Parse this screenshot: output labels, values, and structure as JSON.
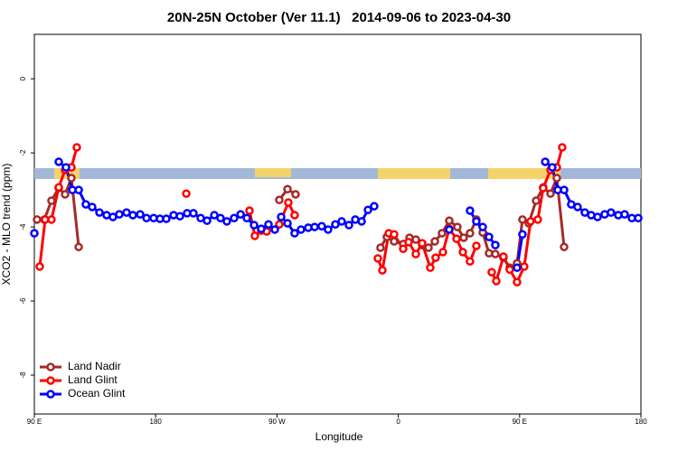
{
  "chart_data": {
    "type": "line",
    "title": "20N-25N October (Ver 11.1)   2014-09-06 to 2023-04-30",
    "x_label": "Longitude",
    "y_label": "XCO2 - MLO trend (ppm)",
    "xlim": [
      90,
      540
    ],
    "ylim": [
      -9.05,
      1.2
    ],
    "xticks": [
      {
        "value": 90,
        "label": "90 E"
      },
      180,
      {
        "value": 270,
        "label": "90 W"
      },
      {
        "value": 360,
        "label": "0"
      },
      {
        "value": 450,
        "label": "90 E"
      },
      {
        "value": 540,
        "label": "180"
      }
    ],
    "yticks": [
      0,
      -2,
      -4,
      -6,
      -8
    ],
    "legend": "bottom-left",
    "series": [
      {
        "name": "Land Nadir",
        "color": "#a52a2a",
        "x": [
          92,
          97.4,
          102.7,
          108.1,
          112.8,
          117.5,
          122.9,
          null,
          271.7,
          277.8,
          283.8,
          null,
          346.8,
          351.5,
          356.9,
          363.6,
          368.3,
          373.0,
          377.7,
          382.4,
          387.1,
          392.4,
          397.8,
          403.8,
          408.5,
          413.2,
          417.9,
          422.6,
          427.3,
          432.0,
          438.0,
          442.7,
          448.1,
          452.1,
          456.8,
          462.2,
          467.5,
          472.9,
          477.6,
          483.0
        ],
        "values": [
          -3.8,
          -3.8,
          -3.29,
          -2.95,
          -3.12,
          -2.68,
          -4.54,
          null,
          -3.27,
          -2.98,
          -3.12,
          null,
          -4.56,
          -4.27,
          -4.39,
          -4.46,
          -4.29,
          -4.34,
          -4.49,
          -4.56,
          -4.39,
          -4.17,
          -3.83,
          -4.0,
          -4.29,
          -4.17,
          -3.8,
          -4.15,
          -4.71,
          -4.73,
          -4.83,
          -5.1,
          -4.98,
          -3.8,
          -3.9,
          -3.29,
          -2.93,
          -3.1,
          -2.68,
          -4.54
        ]
      },
      {
        "name": "Land Glint",
        "color": "#ff0000",
        "x": [
          94.0,
          98.0,
          102.7,
          108.1,
          112.8,
          117.5,
          121.5,
          null,
          202.7,
          null,
          249.6,
          253.6,
          258.3,
          262.3,
          271.7,
          278.4,
          283.1,
          null,
          344.8,
          348.2,
          352.9,
          356.9,
          363.6,
          367.6,
          373.0,
          377.7,
          383.7,
          387.7,
          393.1,
          397.8,
          403.2,
          407.9,
          413.2,
          417.9,
          null,
          429.3,
          432.7,
          438.0,
          442.7,
          448.1,
          453.4,
          458.1,
          463.5,
          467.5,
          472.9,
          477.6,
          481.6
        ],
        "values": [
          -5.07,
          -3.8,
          -3.8,
          -2.93,
          -2.46,
          -2.39,
          -1.85,
          null,
          -3.1,
          null,
          -3.56,
          -4.24,
          -4.1,
          -4.12,
          -3.93,
          -3.34,
          -3.68,
          null,
          -4.85,
          -5.17,
          -4.17,
          -4.2,
          -4.59,
          -4.41,
          -4.73,
          -4.44,
          -5.1,
          -4.83,
          -4.68,
          -4.05,
          -4.32,
          -4.68,
          -4.93,
          -4.51,
          null,
          -5.22,
          -5.46,
          -4.8,
          -5.15,
          -5.49,
          -5.07,
          -3.85,
          -3.8,
          -2.95,
          -2.46,
          -2.39,
          -1.85
        ]
      },
      {
        "name": "Ocean Glint",
        "color": "#0000ff",
        "x": [
          90,
          null,
          108.1,
          113.5,
          118.2,
          122.9,
          128.2,
          132.9,
          138.3,
          143.6,
          148.3,
          153.0,
          158.4,
          163.1,
          168.5,
          173.2,
          178.5,
          183.2,
          187.9,
          193.3,
          198.0,
          203.3,
          208.0,
          213.4,
          218.1,
          223.5,
          228.1,
          232.8,
          238.2,
          243.0,
          247.6,
          253.0,
          258.3,
          263.7,
          268.4,
          273.1,
          277.8,
          283.1,
          287.8,
          293.2,
          297.9,
          303.2,
          307.9,
          313.3,
          318.0,
          323.4,
          328.1,
          332.8,
          337.5,
          342.1,
          null,
          397.8,
          null,
          413.2,
          417.9,
          422.6,
          427.3,
          432.0,
          null,
          448.1,
          452.1,
          null,
          469.0,
          474.2,
          478.3,
          483.0,
          488.3,
          493.0,
          498.4,
          503.1,
          507.8,
          513.1,
          517.8,
          523.2,
          527.9,
          533.3,
          538.0
        ],
        "values": [
          -4.17,
          null,
          -2.24,
          -2.39,
          -3.0,
          -3.0,
          -3.39,
          -3.46,
          -3.61,
          -3.68,
          -3.73,
          -3.66,
          -3.61,
          -3.68,
          -3.66,
          -3.76,
          -3.76,
          -3.78,
          -3.78,
          -3.68,
          -3.71,
          -3.63,
          -3.63,
          -3.76,
          -3.83,
          -3.68,
          -3.76,
          -3.85,
          -3.76,
          -3.66,
          -3.76,
          -3.95,
          -4.05,
          -3.93,
          -4.07,
          -3.73,
          -3.9,
          -4.17,
          -4.07,
          -4.02,
          -4.0,
          -3.98,
          -4.07,
          -3.93,
          -3.85,
          -3.95,
          -3.8,
          -3.85,
          -3.54,
          -3.44,
          null,
          -4.07,
          null,
          -3.56,
          -3.85,
          -4.0,
          -4.27,
          -4.49,
          null,
          -5.1,
          -4.2,
          null,
          -2.24,
          -2.39,
          -3.0,
          -3.0,
          -3.39,
          -3.46,
          -3.61,
          -3.68,
          -3.73,
          -3.66,
          -3.61,
          -3.68,
          -3.66,
          -3.76,
          -3.76
        ]
      }
    ]
  }
}
